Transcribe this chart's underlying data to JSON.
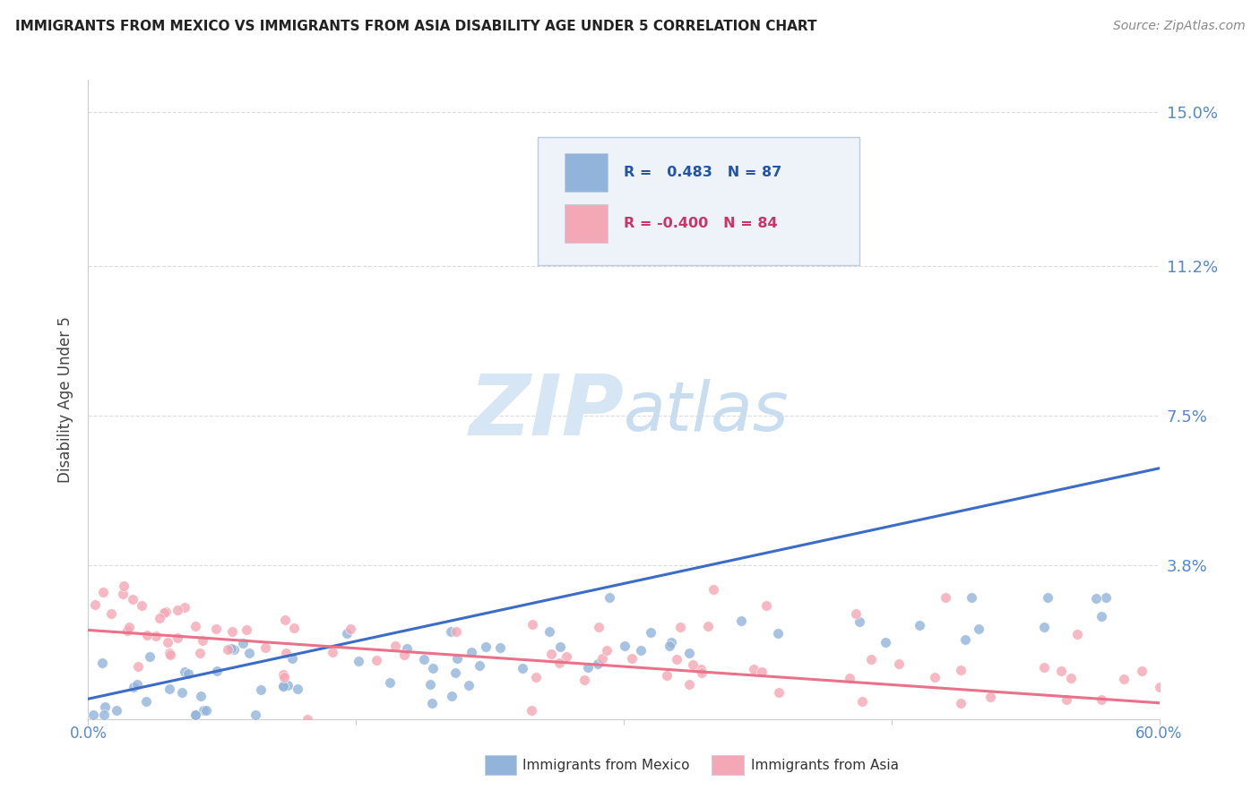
{
  "title": "IMMIGRANTS FROM MEXICO VS IMMIGRANTS FROM ASIA DISABILITY AGE UNDER 5 CORRELATION CHART",
  "source": "Source: ZipAtlas.com",
  "ylabel": "Disability Age Under 5",
  "yticks": [
    0.0,
    0.038,
    0.075,
    0.112,
    0.15
  ],
  "ytick_labels": [
    "",
    "3.8%",
    "7.5%",
    "11.2%",
    "15.0%"
  ],
  "xlim": [
    0.0,
    0.6
  ],
  "ylim": [
    0.0,
    0.158
  ],
  "blue_color": "#92B4DA",
  "pink_color": "#F4A7B5",
  "blue_line_color": "#3B6CC7",
  "pink_line_color": "#E8728A",
  "watermark_color": "#D6E6F5",
  "grid_color": "#CCCCCC",
  "spine_color": "#CCCCCC",
  "title_color": "#222222",
  "source_color": "#888888",
  "ylabel_color": "#444444",
  "tick_label_color": "#5588CC",
  "legend_bg": "#EEF3FA",
  "legend_border": "#BBCCDD"
}
